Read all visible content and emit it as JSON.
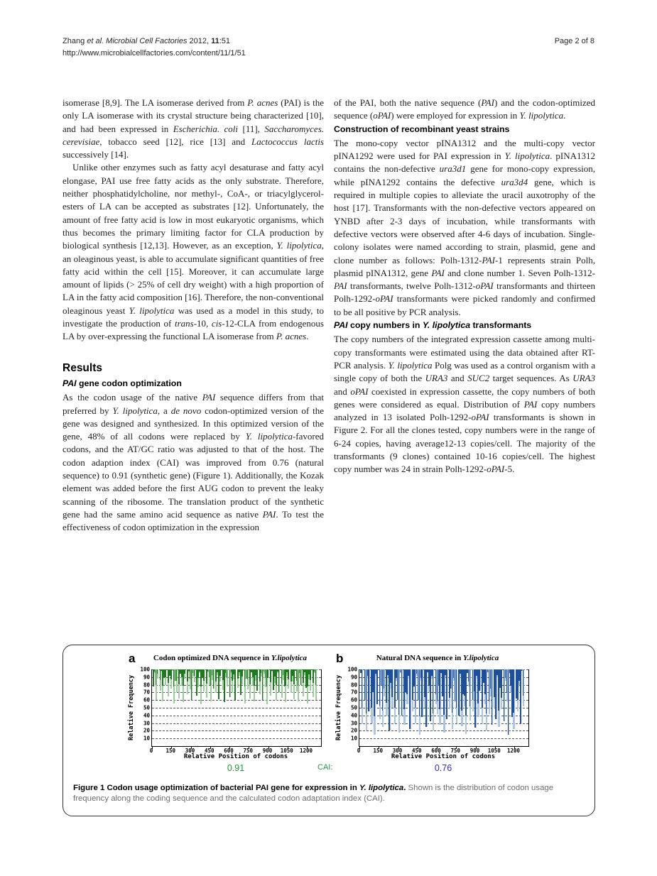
{
  "header": {
    "citation_html": "Zhang <i>et al. Microbial Cell Factories</i> 2012, <b>11</b>:51",
    "url": "http://www.microbialcellfactories.com/content/11/1/51",
    "page_label": "Page 2 of 8"
  },
  "left_column": {
    "p1_html": "isomerase [8,9]. The LA isomerase derived from <i>P. acnes</i> (PAI) is the only LA isomerase with its crystal structure being characterized [10], and had been expressed in <i>Escherichia. coli</i> [11], <i>Saccharomyces. cerevisiae</i>, tobacco seed [12], rice [13] and <i>Lactococcus lactis</i> successively [14].",
    "p2_html": "Unlike other enzymes such as fatty acyl desaturase and fatty acyl elongase, PAI use free fatty acids as the only substrate. Therefore, neither phosphatidylcholine, nor methyl-, CoA-, or triacylglycerol- esters of LA can be accepted as substrates [12]. Unfortunately, the amount of free fatty acid is low in most eukaryotic organisms, which thus becomes the primary limiting factor for CLA production by biological synthesis [12,13]. However, as an exception, <i>Y. lipolytica</i>, an oleaginous yeast, is able to accumulate significant quantities of free fatty acid within the cell [15]. Moreover, it can accumulate large amount of lipids (&gt; 25% of cell dry weight) with a high proportion of LA in the fatty acid composition [16]. Therefore, the non-conventional oleaginous yeast <i>Y. lipolytica</i> was used as a model in this study, to investigate the production of <i>trans</i>-10, <i>cis</i>-12-CLA from endogenous LA by over-expressing the functional LA isomerase from <i>P. acnes</i>.",
    "results_heading": "Results",
    "sub1_html": "<i>PAI</i> gene codon optimization",
    "p3_html": "As the codon usage of the native <i>PAI</i> sequence differs from that preferred by <i>Y. lipolytica</i>, a <i>de novo</i> codon-optimized version of the gene was designed and synthesized. In this optimized version of the gene, 48% of all codons were replaced by <i>Y. lipolytica</i>-favored codons, and the AT/GC ratio was adjusted to that of the host. The codon adaption index (CAI) was improved from 0.76 (natural sequence) to 0.91 (synthetic gene) (Figure 1). Additionally, the Kozak element was added before the first AUG codon to prevent the leaky scanning of the ribosome. The translation product of the synthetic gene had the same amino acid sequence as native <i>PAI</i>. To test the effectiveness of codon optimization in the expression"
  },
  "right_column": {
    "p1_html": "of the PAI, both the native sequence (<i>PAI</i>) and the codon-optimized sequence (<i>oPAI</i>) were employed for expression in <i>Y. lipolytica</i>.",
    "sub_construction": "Construction of recombinant yeast strains",
    "p2_html": "The mono-copy vector pINA1312 and the multi-copy vector pINA1292 were used for PAI expression in <i>Y. lipolytica</i>. pINA1312 contains the non-defective <i>ura3d1</i> gene for mono-copy expression, while pINA1292 contains the defective <i>ura3d4</i> gene, which is required in multiple copies to alleviate the uracil auxotrophy of the host [17]. Transformants with the non-defective vectors appeared on YNBD after 2-3 days of incubation, while transformants with defective vectors were observed after 4-6 days of incubation. Single-colony isolates were named according to strain, plasmid, gene and clone number as follows: Polh-1312-<i>PAI</i>-1 represents strain Polh, plasmid pINA1312, gene <i>PAI</i> and clone number 1. Seven Polh-1312-<i>PAI</i> transformants, twelve Polh-1312-<i>oPAI</i> transformants and thirteen Polh-1292-<i>oPAI</i> transformants were picked randomly and confirmed to be all positive by PCR analysis.",
    "sub_copy_html": "<i>PAI</i> copy numbers in <i>Y. lipolytica</i> transformants",
    "p3_html": "The copy numbers of the integrated expression cassette among multi-copy transformants were estimated using the data obtained after RT-PCR analysis. <i>Y. lipolytica</i> Polg was used as a control organism with a single copy of both the <i>URA3</i> and <i>SUC2</i> target sequences. As <i>URA3</i> and <i>oPAI</i> coexisted in expression cassette, the copy numbers of both genes were considered as equal. Distribution of <i>PAI</i> copy numbers analyzed in 13 isolated Polh-1292-<i>oPAI</i> transformants is shown in Figure 2. For all the clones tested, copy numbers were in the range of 6-24 copies, having average12-13 copies/cell. The majority of the transformants (9 clones) contained 10-16 copies/cell. The highest copy number was 24 in strain Polh-1292-<i>oPAI</i>-5."
  },
  "figure": {
    "panel_a_letter": "a",
    "panel_a_title_html": "Codon optimized DNA sequence in <i>Y.lipolytica</i>",
    "panel_b_letter": "b",
    "panel_b_title_html": "Natural DNA sequence in <i>Y.lipolytica</i>",
    "cai_label": "CAI:",
    "cai_label_color": "#1e9a3e",
    "caption_bold_html": "Figure 1 Codon usage optimization of bacterial PAI gene for expression in <i>Y. lipolytica</i>.",
    "caption_rest": " Shown is the distribution of codon usage frequency along the coding sequence and the calculated codon adaptation index (CAI)."
  },
  "chart_data": [
    {
      "type": "bar",
      "panel": "a",
      "title": "Codon optimized DNA sequence in Y.lipolytica",
      "xlabel": "Relative Position of codons",
      "ylabel": "Relative Frequency",
      "ylim": [
        0,
        100
      ],
      "yticks": [
        10,
        20,
        30,
        40,
        50,
        60,
        70,
        80,
        90,
        100
      ],
      "xticks": [
        0,
        150,
        300,
        450,
        600,
        750,
        900,
        1050,
        1200
      ],
      "xmax": 1310,
      "data_span": 1270,
      "grid": "dashed-horizontal",
      "bar_style": "drop-from-100",
      "color_dark": "#1b7a1b",
      "color_light": "#9ccf9c",
      "cai_value": "0.91",
      "cai_color": "#1e9a2e",
      "values": [
        78,
        95,
        60,
        88,
        100,
        72,
        97,
        58,
        90,
        80,
        100,
        65,
        92,
        75,
        98,
        56,
        85,
        70,
        100,
        62,
        94,
        79,
        57,
        88,
        100,
        68,
        96,
        74,
        59,
        91,
        83,
        100,
        66,
        77,
        95,
        55,
        89,
        71,
        100,
        63,
        97,
        80,
        58,
        86,
        75,
        100,
        69,
        93,
        61,
        84,
        99,
        73,
        57,
        90,
        78,
        100,
        64,
        95,
        70,
        87,
        59,
        100,
        76,
        92,
        67,
        81,
        98,
        56,
        88,
        74,
        100,
        62,
        96,
        79,
        58,
        85,
        72,
        100,
        68,
        91,
        60,
        94,
        77,
        55,
        89,
        100,
        66,
        97,
        73,
        82,
        59,
        95,
        70,
        100,
        63,
        86,
        78,
        57,
        92,
        75,
        100,
        69,
        84,
        61,
        98,
        71,
        58,
        90,
        80,
        100,
        65,
        93,
        76,
        56,
        87,
        72,
        99,
        64,
        95,
        60
      ]
    },
    {
      "type": "bar",
      "panel": "b",
      "title": "Natural DNA sequence in Y.lipolytica",
      "xlabel": "Relative Position of codons",
      "ylabel": "Relative Frequency",
      "ylim": [
        0,
        100
      ],
      "yticks": [
        10,
        20,
        30,
        40,
        50,
        60,
        70,
        80,
        90,
        100
      ],
      "xticks": [
        0,
        150,
        300,
        450,
        600,
        750,
        900,
        1050,
        1200
      ],
      "xmax": 1310,
      "data_span": 1270,
      "grid": "dashed-horizontal",
      "bar_style": "drop-from-100",
      "color_dark": "#1d4f9e",
      "color_light": "#aac6e2",
      "cai_value": "0.76",
      "cai_color": "#2a2ace",
      "values": [
        95,
        30,
        100,
        60,
        20,
        88,
        45,
        100,
        30,
        70,
        15,
        92,
        55,
        100,
        35,
        80,
        25,
        65,
        100,
        40,
        90,
        20,
        75,
        50,
        100,
        30,
        85,
        60,
        18,
        95,
        40,
        100,
        28,
        70,
        55,
        88,
        22,
        100,
        45,
        78,
        30,
        92,
        60,
        15,
        85,
        38,
        100,
        50,
        25,
        95,
        70,
        32,
        88,
        20,
        100,
        55,
        42,
        80,
        28,
        94,
        65,
        18,
        90,
        35,
        100,
        48,
        75,
        22,
        85,
        58,
        30,
        100,
        40,
        92,
        26,
        68,
        52,
        16,
        95,
        78,
        33,
        100,
        45,
        60,
        24,
        88,
        38,
        72,
        100,
        30,
        82,
        55,
        20,
        96,
        42,
        65,
        28,
        100,
        50,
        35,
        90,
        25,
        76,
        48,
        100,
        32,
        85,
        58,
        15,
        94,
        70,
        38,
        22,
        100,
        62,
        45,
        80,
        30,
        98,
        52
      ]
    }
  ]
}
